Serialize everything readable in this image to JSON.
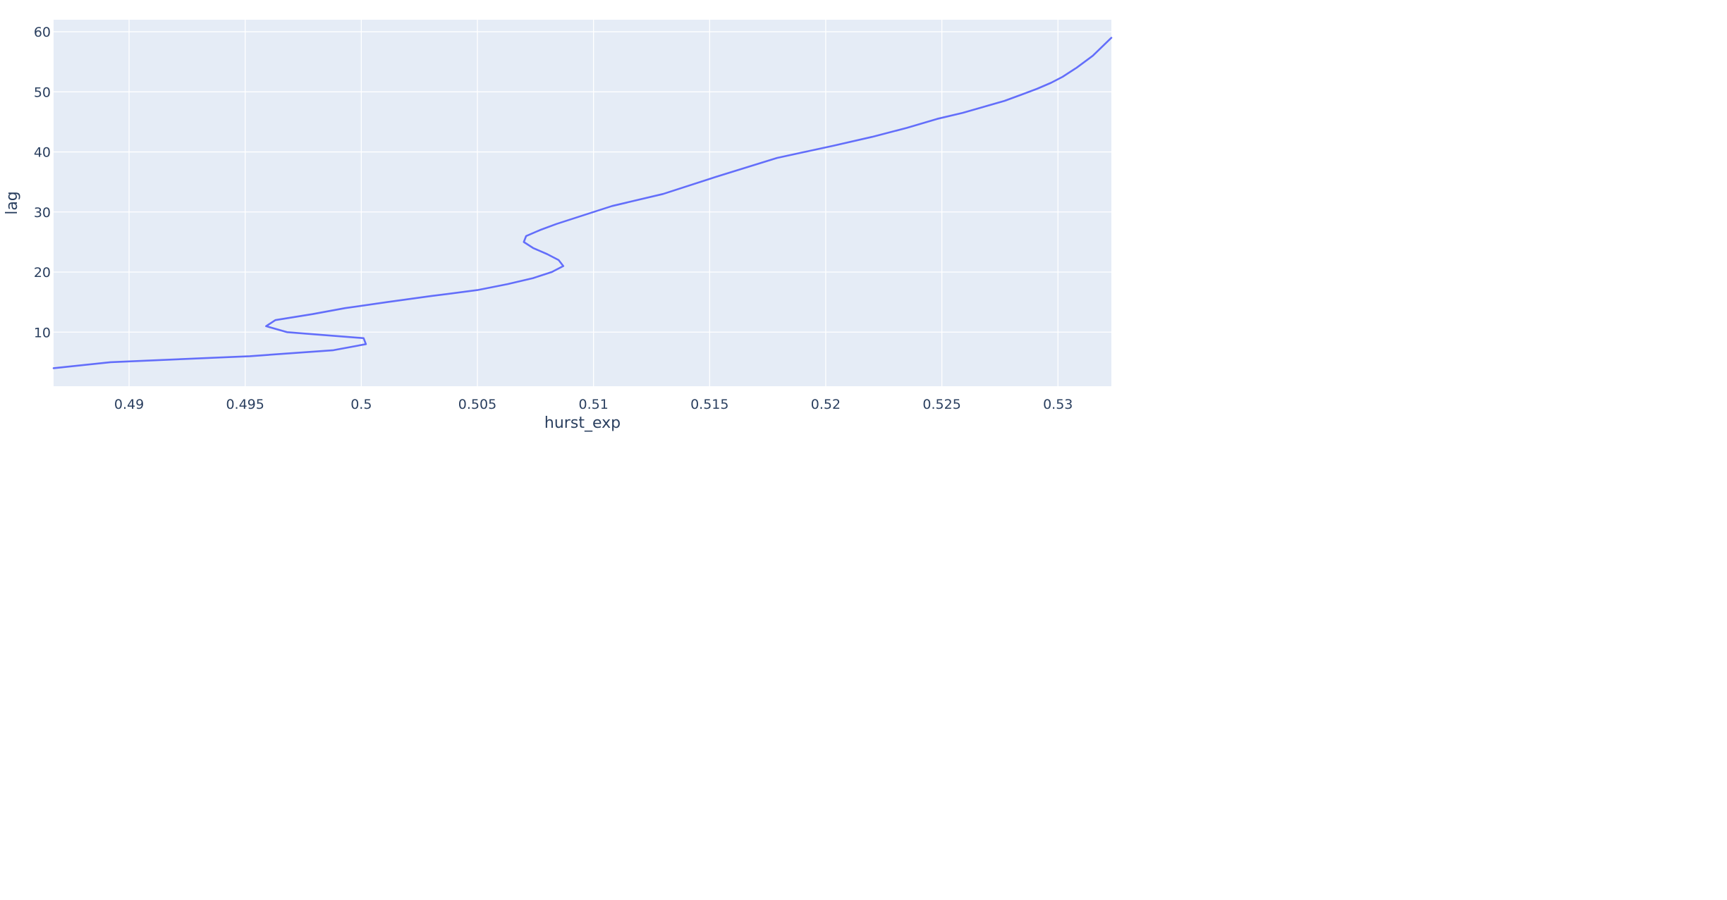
{
  "chart_data": {
    "type": "line",
    "title": "",
    "xlabel": "hurst_exp",
    "ylabel": "lag",
    "xlim": [
      0.48675,
      0.5323
    ],
    "ylim": [
      1.0,
      62.0
    ],
    "xticks": [
      0.49,
      0.495,
      0.5,
      0.505,
      0.51,
      0.515,
      0.52,
      0.525,
      0.53
    ],
    "xtick_labels": [
      "0.49",
      "0.495",
      "0.5",
      "0.505",
      "0.51",
      "0.515",
      "0.52",
      "0.525",
      "0.53"
    ],
    "yticks": [
      10,
      20,
      30,
      40,
      50,
      60
    ],
    "ytick_labels": [
      "10",
      "20",
      "30",
      "40",
      "50",
      "60"
    ],
    "grid": true,
    "legend": "none",
    "colors": {
      "plot_bg": "#E5ECF6",
      "grid": "#FFFFFF",
      "line": "#636EFA",
      "text": "#2A3F5F"
    },
    "series": [
      {
        "x": [
          0.48675,
          0.4892,
          0.4952,
          0.4988,
          0.5002,
          0.5001,
          0.4968,
          0.4959,
          0.4963,
          0.4979,
          0.4993,
          0.5011,
          0.503,
          0.505,
          0.5063,
          0.5074,
          0.5082,
          0.5087,
          0.5085,
          0.508,
          0.5074,
          0.507,
          0.5071,
          0.5077,
          0.5084,
          0.5092,
          0.51,
          0.5108,
          0.513,
          0.5154,
          0.5179,
          0.5203,
          0.522,
          0.5235,
          0.5248,
          0.5259,
          0.5268,
          0.5277,
          0.5284,
          0.5291,
          0.5297,
          0.5302,
          0.5308,
          0.5315,
          0.5323
        ],
        "y": [
          4,
          5,
          6,
          7,
          8,
          9,
          10,
          11,
          12,
          13,
          14,
          15,
          16,
          17,
          18,
          19,
          20,
          21,
          22,
          23,
          24,
          25,
          26,
          27,
          28,
          29,
          30,
          31,
          33,
          36,
          39,
          41,
          42.5,
          44,
          45.5,
          46.5,
          47.5,
          48.5,
          49.5,
          50.5,
          51.5,
          52.5,
          54,
          56,
          59
        ]
      }
    ]
  }
}
